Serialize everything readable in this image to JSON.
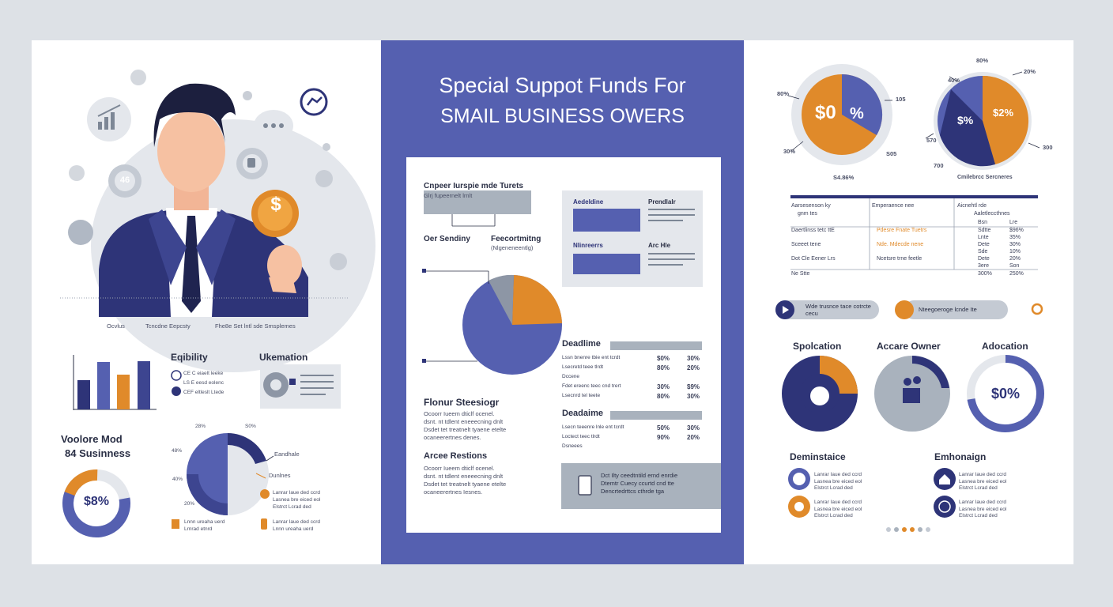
{
  "colors": {
    "navy": "#2e3478",
    "blue": "#5560b0",
    "orange": "#e08a2a",
    "grey": "#a9b2bd",
    "bg": "#dde1e6"
  },
  "left": {
    "caption": [
      "Ocvlus",
      "Tcncdne Eepcsty",
      "Fhe8e Set lntl sde Smsplemes"
    ],
    "dollar_coin": "$",
    "gear_badge": "46",
    "eligibility": {
      "title": "Eqibility",
      "lines": [
        "CE C eiaelt leeke",
        "LS E eesd eolenc",
        "CEF eltleslt Ltede"
      ]
    },
    "ukemation": {
      "title": "Ukemation"
    },
    "volore": {
      "title1": "Voolore Mod",
      "title2": "84 Susinness",
      "value": "$8%"
    },
    "semi_chart": {
      "labels": [
        "28%",
        "S0%",
        "48%",
        "40%",
        "20%"
      ],
      "callouts": [
        "Eandhale",
        "Dunlnes"
      ]
    },
    "legend_items": [
      {
        "lines": [
          "Lanrar Iaue ded ccrd",
          "Lasnea bre eiced eol",
          "Elstrct Lcrad ded"
        ]
      },
      {
        "lines": [
          "Lnnn ureaha uerd",
          "Lrnrad etnrd"
        ]
      },
      {
        "lines": [
          "Lanrar Iaue ded ccrd",
          "Lnnn ureaha uerd"
        ]
      }
    ]
  },
  "mid": {
    "title1": "Special Suppot Funds For",
    "title2": "SMAIL BUSINESS OWERS",
    "doc": {
      "head1": "Cnpeer Iurspie mde Turets",
      "sub1": "Glrj fupeernelt lrnlt",
      "label_a": "Oer Sendiny",
      "label_b": "Feecortmitng",
      "label_b_sub": "(Nlgeneneentlg)",
      "box_labels": [
        "Aedeldine",
        "Prendlalr",
        "Nlinreerrs",
        "Arc Hle"
      ],
      "flour_title": "Flonur Steesiogr",
      "flour_lines": [
        "Ocoorr Iueem dticlf ocenel.",
        "dsnt. nt tdlent eneeecning dnlt",
        "Dsdet tet treatnelt tyaene etelte",
        "ocaneerertnes denes."
      ],
      "arces_title": "Arcee Restions",
      "arces_lines": [
        "Ocoorr Iueem dticlf ocenel.",
        "dsnt. nt tdlent eneeecning dnlt",
        "Dsdet tet treatnelt tyaene etelte",
        "ocaneerertnes Iesnes."
      ],
      "dead1": "Deadlime",
      "dead1_rows": [
        {
          "text": "Lssn bnenre tbie ent tcrdt",
          "a": "$0%",
          "b": "30%"
        },
        {
          "text": "Lsecretd teee tlrdt",
          "a": "80%",
          "b": "20%"
        },
        {
          "text": "Dccene",
          "a": "",
          "b": ""
        },
        {
          "text": "Fdet ereenc teec cnd trert",
          "a": "30%",
          "b": "$9%"
        },
        {
          "text": "Lsecnrd tel teete",
          "a": "80%",
          "b": "30%"
        }
      ],
      "dead2": "Deadaime",
      "dead2_rows": [
        {
          "text": "Lsecn teeenre lnle ent tcrdt",
          "a": "50%",
          "b": "30%"
        },
        {
          "text": "Loctect teec tlrdt",
          "a": "90%",
          "b": "20%"
        },
        {
          "text": "Dsneees",
          "a": "",
          "b": ""
        }
      ],
      "notice_lines": [
        "Dct Ilty ceedtntild ernd enrdie",
        "Dtemtr Cuecy ccurtd cnd tte",
        "Dencrtedrttcs cthrde tga"
      ]
    }
  },
  "right": {
    "pie1": {
      "center1": "$0",
      "center2": "%",
      "labels": [
        "80%",
        "30%",
        "105",
        "S05",
        "S4.86%"
      ]
    },
    "pie2": {
      "center1": "$%",
      "center2": "$2%",
      "labels": [
        "80%",
        "40%",
        "20%",
        "570",
        "300",
        "700",
        "Cmilebrcc Sercneres"
      ]
    },
    "table": {
      "head": [
        "Aarsesenson ky",
        "Emperaence nee",
        "Aicnehtl rde"
      ],
      "head2": [
        "gnm tes",
        "",
        "Aaletleccthnes"
      ],
      "rows": [
        {
          "c1": "Daertlinss tetc ttE",
          "c2": "Pdesre Fnate Tuetrs",
          "c3a": "Sdtte",
          "c3b": "$96%"
        },
        {
          "c1": "Sceeet tene",
          "c2": "Nde. Mdecde nene",
          "c3a": "Dete",
          "c3b": "30%"
        },
        {
          "c1": "Dot Cle   Eener Lrs",
          "c2": "Ncetsre trne feetle",
          "c3a": "Dete",
          "c3b": "20%"
        },
        {
          "c1": "Ne      Stte",
          "c2": "",
          "c3a": "300%",
          "c3b": "250%"
        }
      ],
      "extra_col": [
        "Bsn",
        "Lnte",
        "Sde",
        "3ere"
      ],
      "extra_col2": [
        "Lre",
        "35%",
        "10%",
        "Son"
      ]
    },
    "progress": [
      {
        "label": "Wde trusnce tace cotrcte cecu"
      },
      {
        "label": "Nteegoeroge lcnde Ite"
      }
    ],
    "donuts": [
      {
        "title": "Spolcation"
      },
      {
        "title": "Accare Owner"
      },
      {
        "title": "Adocation",
        "value": "$0%"
      }
    ],
    "bottom": [
      {
        "title": "Deminstaice",
        "items": [
          [
            "Lanrar Iaue ded ccrd",
            "Lasnea bre eiced eol",
            "Elstrct Lcrad ded"
          ],
          [
            "Lanrar Iaue ded ccrd",
            "Lasnea bre eiced eol",
            "Elstrct Lcrad ded"
          ]
        ]
      },
      {
        "title": "Emhonaign",
        "items": [
          [
            "Lanrar Iaue ded ccrd",
            "Lasnea bre eiced eol",
            "Elstrct Lcrad ded"
          ],
          [
            "Lanrar Iaue ded ccrd",
            "Lasnea bre eiced eol",
            "Elstrct Lcrad ded"
          ]
        ]
      }
    ]
  }
}
